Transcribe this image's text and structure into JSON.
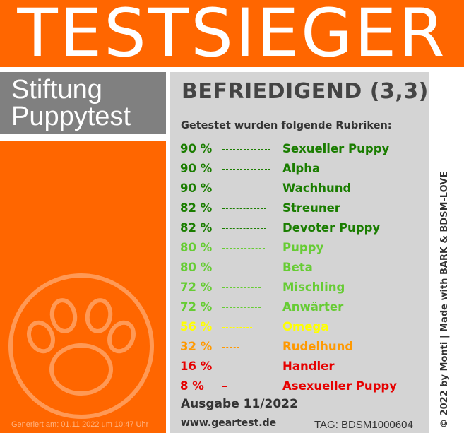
{
  "banner": {
    "title": "TESTSIEGER"
  },
  "brand": {
    "line1": "Stiftung",
    "line2": "Puppytest"
  },
  "result": {
    "grade": "BEFRIEDIGEND (3,3)"
  },
  "intro": "Getestet wurden folgende Rubriken:",
  "categories": [
    {
      "percent": "90 %",
      "name": "Sexueller Puppy",
      "value": 90,
      "color": "#1a7d00"
    },
    {
      "percent": "90 %",
      "name": "Alpha",
      "value": 90,
      "color": "#1a7d00"
    },
    {
      "percent": "90 %",
      "name": "Wachhund",
      "value": 90,
      "color": "#1a7d00"
    },
    {
      "percent": "82 %",
      "name": "Streuner",
      "value": 82,
      "color": "#1a7d00"
    },
    {
      "percent": "82 %",
      "name": "Devoter Puppy",
      "value": 82,
      "color": "#1a7d00"
    },
    {
      "percent": "80 %",
      "name": "Puppy",
      "value": 80,
      "color": "#66cc33"
    },
    {
      "percent": "80 %",
      "name": "Beta",
      "value": 80,
      "color": "#66cc33"
    },
    {
      "percent": "72 %",
      "name": "Mischling",
      "value": 72,
      "color": "#66cc33"
    },
    {
      "percent": "72 %",
      "name": "Anwärter",
      "value": 72,
      "color": "#66cc33"
    },
    {
      "percent": "56 %",
      "name": "Omega",
      "value": 56,
      "color": "#ffff00"
    },
    {
      "percent": "32 %",
      "name": "Rudelhund",
      "value": 32,
      "color": "#ff9900"
    },
    {
      "percent": "16 %",
      "name": "Handler",
      "value": 16,
      "color": "#e60000"
    },
    {
      "percent": "8 %",
      "name": "Asexueller Puppy",
      "value": 8,
      "color": "#e60000"
    }
  ],
  "edition": "Ausgabe 11/2022",
  "url": "www.geartest.de",
  "tag": "TAG: BDSM1000604",
  "generated": "Generiert am: 01.11.2022 um 10:47 Uhr",
  "credit": "© 2022 by Monti | Made with BARK & BDSM-LOVE",
  "colors": {
    "orange": "#ff6600",
    "grey_panel": "#d4d4d4",
    "brand_grey": "#808080"
  },
  "icons": {
    "paw": "paw-icon"
  }
}
